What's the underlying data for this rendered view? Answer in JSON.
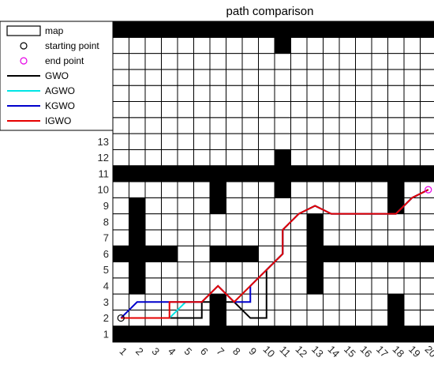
{
  "chart_data": {
    "type": "grid-map-paths",
    "title": "path comparison",
    "grid_size": 20,
    "x_ticks": [
      "1",
      "2",
      "3",
      "4",
      "5",
      "6",
      "7",
      "8",
      "9",
      "10",
      "11",
      "12",
      "13",
      "14",
      "15",
      "16",
      "17",
      "18",
      "19",
      "20"
    ],
    "y_ticks": [
      "1",
      "2",
      "3",
      "4",
      "5",
      "6",
      "7",
      "8",
      "9",
      "10",
      "11",
      "12",
      "13"
    ],
    "obstacles": [
      [
        1,
        1
      ],
      [
        2,
        1
      ],
      [
        3,
        1
      ],
      [
        4,
        1
      ],
      [
        5,
        1
      ],
      [
        6,
        1
      ],
      [
        7,
        1
      ],
      [
        8,
        1
      ],
      [
        9,
        1
      ],
      [
        10,
        1
      ],
      [
        11,
        1
      ],
      [
        12,
        1
      ],
      [
        13,
        1
      ],
      [
        14,
        1
      ],
      [
        15,
        1
      ],
      [
        16,
        1
      ],
      [
        17,
        1
      ],
      [
        18,
        1
      ],
      [
        19,
        1
      ],
      [
        20,
        1
      ],
      [
        1,
        20
      ],
      [
        2,
        20
      ],
      [
        3,
        20
      ],
      [
        4,
        20
      ],
      [
        5,
        20
      ],
      [
        6,
        20
      ],
      [
        7,
        20
      ],
      [
        8,
        20
      ],
      [
        9,
        20
      ],
      [
        10,
        20
      ],
      [
        11,
        20
      ],
      [
        12,
        20
      ],
      [
        13,
        20
      ],
      [
        14,
        20
      ],
      [
        15,
        20
      ],
      [
        16,
        20
      ],
      [
        17,
        20
      ],
      [
        18,
        20
      ],
      [
        19,
        20
      ],
      [
        20,
        20
      ],
      [
        11,
        19
      ],
      [
        11,
        12
      ],
      [
        1,
        11
      ],
      [
        2,
        11
      ],
      [
        3,
        11
      ],
      [
        4,
        11
      ],
      [
        5,
        11
      ],
      [
        6,
        11
      ],
      [
        7,
        11
      ],
      [
        8,
        11
      ],
      [
        9,
        11
      ],
      [
        10,
        11
      ],
      [
        11,
        11
      ],
      [
        12,
        11
      ],
      [
        13,
        11
      ],
      [
        14,
        11
      ],
      [
        15,
        11
      ],
      [
        16,
        11
      ],
      [
        17,
        11
      ],
      [
        18,
        11
      ],
      [
        19,
        11
      ],
      [
        20,
        11
      ],
      [
        7,
        10
      ],
      [
        7,
        9
      ],
      [
        11,
        10
      ],
      [
        18,
        10
      ],
      [
        18,
        9
      ],
      [
        2,
        4
      ],
      [
        2,
        5
      ],
      [
        2,
        6
      ],
      [
        2,
        7
      ],
      [
        2,
        8
      ],
      [
        2,
        9
      ],
      [
        1,
        6
      ],
      [
        3,
        6
      ],
      [
        4,
        6
      ],
      [
        7,
        6
      ],
      [
        8,
        6
      ],
      [
        9,
        6
      ],
      [
        13,
        4
      ],
      [
        13,
        5
      ],
      [
        13,
        6
      ],
      [
        13,
        7
      ],
      [
        13,
        8
      ],
      [
        14,
        6
      ],
      [
        15,
        6
      ],
      [
        16,
        6
      ],
      [
        17,
        6
      ],
      [
        18,
        6
      ],
      [
        19,
        6
      ],
      [
        20,
        6
      ],
      [
        7,
        2
      ],
      [
        7,
        3
      ],
      [
        18,
        2
      ],
      [
        18,
        3
      ]
    ],
    "start": [
      1,
      2
    ],
    "end": [
      20,
      10
    ],
    "series": [
      {
        "name": "GWO",
        "color": "#000000",
        "points": [
          [
            1,
            2
          ],
          [
            2,
            2
          ],
          [
            3,
            2
          ],
          [
            4,
            2
          ],
          [
            5,
            2
          ],
          [
            6,
            2
          ],
          [
            6,
            3
          ],
          [
            7,
            3
          ],
          [
            8,
            3
          ],
          [
            9,
            2
          ],
          [
            10,
            2
          ],
          [
            10,
            5
          ],
          [
            11,
            6
          ],
          [
            11,
            7.5
          ],
          [
            12,
            8.5
          ],
          [
            13,
            9
          ],
          [
            14,
            8.5
          ],
          [
            15,
            8.5
          ],
          [
            16,
            8.5
          ],
          [
            17,
            8.5
          ],
          [
            18,
            8.5
          ],
          [
            19,
            9.5
          ],
          [
            20,
            10
          ]
        ]
      },
      {
        "name": "AGWO",
        "color": "#00e5e5",
        "points": [
          [
            1,
            2
          ],
          [
            2,
            2
          ],
          [
            3,
            2
          ],
          [
            4,
            2
          ],
          [
            5,
            3
          ],
          [
            6,
            3
          ],
          [
            7,
            4
          ],
          [
            8,
            3
          ],
          [
            9,
            4
          ],
          [
            10,
            5
          ],
          [
            11,
            6
          ],
          [
            11,
            7.5
          ],
          [
            12,
            8.5
          ],
          [
            13,
            9
          ],
          [
            14,
            8.5
          ],
          [
            15,
            8.5
          ],
          [
            16,
            8.5
          ],
          [
            17,
            8.5
          ],
          [
            18,
            8.5
          ],
          [
            19,
            9.5
          ],
          [
            20,
            10
          ]
        ]
      },
      {
        "name": "KGWO",
        "color": "#0000cc",
        "points": [
          [
            1,
            2
          ],
          [
            2,
            3
          ],
          [
            3,
            3
          ],
          [
            4,
            3
          ],
          [
            5,
            3
          ],
          [
            6,
            3
          ],
          [
            7,
            4
          ],
          [
            8,
            3
          ],
          [
            9,
            3
          ],
          [
            9,
            4
          ],
          [
            10,
            5
          ],
          [
            11,
            6
          ],
          [
            11,
            7.5
          ],
          [
            12,
            8.5
          ],
          [
            13,
            9
          ],
          [
            14,
            8.5
          ],
          [
            15,
            8.5
          ],
          [
            16,
            8.5
          ],
          [
            17,
            8.5
          ],
          [
            18,
            8.5
          ],
          [
            19,
            9.5
          ],
          [
            20,
            10
          ]
        ]
      },
      {
        "name": "IGWO",
        "color": "#e60000",
        "points": [
          [
            1,
            2
          ],
          [
            2,
            2
          ],
          [
            3,
            2
          ],
          [
            4,
            2
          ],
          [
            4,
            3
          ],
          [
            5,
            3
          ],
          [
            6,
            3
          ],
          [
            7,
            4
          ],
          [
            8,
            3
          ],
          [
            9,
            4
          ],
          [
            10,
            5
          ],
          [
            11,
            6
          ],
          [
            11,
            7.5
          ],
          [
            12,
            8.5
          ],
          [
            13,
            9
          ],
          [
            14,
            8.5
          ],
          [
            15,
            8.5
          ],
          [
            16,
            8.5
          ],
          [
            17,
            8.5
          ],
          [
            18,
            8.5
          ],
          [
            19,
            9.5
          ],
          [
            20,
            10
          ]
        ]
      }
    ],
    "legend": {
      "placement": "top-left",
      "entries": [
        {
          "label": "map",
          "kind": "box"
        },
        {
          "label": "starting point",
          "kind": "marker",
          "color": "#000000"
        },
        {
          "label": "end point",
          "kind": "marker",
          "color": "#e600e6"
        },
        {
          "label": "GWO",
          "kind": "line",
          "color": "#000000"
        },
        {
          "label": "AGWO",
          "kind": "line",
          "color": "#00e5e5"
        },
        {
          "label": "KGWO",
          "kind": "line",
          "color": "#0000cc"
        },
        {
          "label": "IGWO",
          "kind": "line",
          "color": "#e60000"
        }
      ]
    }
  }
}
